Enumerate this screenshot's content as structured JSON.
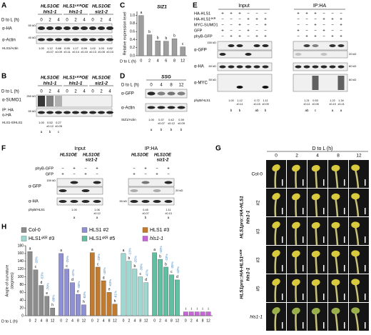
{
  "panels": {
    "A": {
      "label": "A",
      "genotypes": [
        [
          "HLS1OE",
          "hls1-1"
        ],
        [
          "HLS1⁶ᴷᴿOE",
          "hls1-1"
        ],
        [
          "HLS1OE",
          "siz1-2"
        ]
      ],
      "time_label": "D to L (h)",
      "times": [
        "0",
        "2",
        "4",
        "0",
        "2",
        "4",
        "0",
        "2",
        "4"
      ],
      "blots": [
        "α-HA",
        "α-Actin"
      ],
      "mw": [
        "50 kD",
        "40 kD"
      ],
      "quant_label": "HLS1/Actin",
      "quant": [
        [
          "1.00"
        ],
        [
          "1.12",
          "±0.07"
        ],
        [
          "0.88",
          "±0.09"
        ],
        [
          "0.95",
          "±0.11"
        ],
        [
          "1.17",
          "±0.14"
        ],
        [
          "0.99",
          "±0.15"
        ],
        [
          "1.02",
          "±0.13"
        ],
        [
          "1.03",
          "±0.05"
        ],
        [
          "0.82",
          "±0.10"
        ]
      ]
    },
    "B": {
      "label": "B",
      "genotypes": [
        [
          "HLS1OE",
          "hls1-1"
        ],
        [
          "HLS1⁶ᴷᴿOE",
          "hls1-1"
        ],
        [
          "HLS1OE",
          "siz1-2"
        ]
      ],
      "time_label": "D to L (h)",
      "times": [
        "0",
        "2",
        "4",
        "0",
        "2",
        "4",
        "0",
        "2",
        "4"
      ],
      "blots": [
        "α-SUMO1",
        "IP: HA",
        "α-HA"
      ],
      "mw": [
        "250 kD",
        "50 kD"
      ],
      "quant_label": "HLS1-S/HLS1",
      "quant": [
        [
          "1.00"
        ],
        [
          "0.52",
          "±0.12"
        ],
        [
          "0.27",
          "±0.05"
        ]
      ],
      "letters": [
        "a",
        "b",
        "c"
      ]
    },
    "D": {
      "label": "D",
      "title": "SSG",
      "time_label": "D to L (h)",
      "times": [
        "0",
        "4",
        "8",
        "12"
      ],
      "blots": [
        "α-GFP",
        "α-Actin"
      ],
      "quant_label": "SIZ1/Actin",
      "quant": [
        [
          "1.00"
        ],
        [
          "0.37",
          "±0.07"
        ],
        [
          "0.42",
          "±0.12"
        ],
        [
          "0.39",
          "±0.09"
        ]
      ],
      "letters": [
        "a",
        "b",
        "b",
        "b"
      ]
    },
    "E": {
      "label": "E",
      "headers": [
        "Input",
        "IP:HA"
      ],
      "rows": [
        "HA-HLS1",
        "HA-HLS1⁶ᴷᴿ",
        "MYC-SUMO1",
        "GFP",
        "phyB-GFP"
      ],
      "signs": [
        [
          "+",
          "+",
          "+",
          "−",
          "−",
          "−",
          "+",
          "+",
          "+",
          "−",
          "−",
          "−"
        ],
        [
          "−",
          "−",
          "−",
          "+",
          "+",
          "+",
          "−",
          "−",
          "−",
          "+",
          "+",
          "+"
        ],
        [
          "−",
          "−",
          "+",
          "−",
          "−",
          "+",
          "−",
          "−",
          "+",
          "−",
          "−",
          "+"
        ],
        [
          "+",
          "−",
          "−",
          "+",
          "−",
          "−",
          "+",
          "−",
          "−",
          "+",
          "−",
          "−"
        ],
        [
          "−",
          "+",
          "+",
          "−",
          "+",
          "+",
          "−",
          "+",
          "+",
          "−",
          "+",
          "+"
        ]
      ],
      "blots": [
        "α-GFP",
        "α-HA",
        "α-MYC"
      ],
      "mw_input": [
        "150 kD",
        "60 kD",
        "50 kD"
      ],
      "mw_ip": [
        "20 kD",
        "60 kD",
        "60 kD"
      ],
      "quant_label": "phyB/HLS1",
      "quant_input": [
        [
          "1.00"
        ],
        [
          "1.12",
          "±0.11"
        ],
        [
          "0.72",
          "±0.15"
        ],
        [
          "1.11",
          "±0.09"
        ]
      ],
      "letters_input": [
        "b",
        "b",
        "ab",
        "b"
      ],
      "quant_ip": [
        [
          "1.21",
          "±0.11"
        ],
        [
          "0.53",
          "±0.05"
        ],
        [
          "1.22",
          "±0.19"
        ],
        [
          "1.34",
          "±0.21"
        ]
      ],
      "letters_ip": [
        "ab",
        "c",
        "a",
        "a"
      ]
    },
    "F": {
      "label": "F",
      "headers": [
        "Input",
        "IP:HA"
      ],
      "genotypes_input": [
        [
          "HLS1OE"
        ],
        [
          "HLS1OE",
          "siz1-2"
        ]
      ],
      "genotypes_ip": [
        [
          "HLS1OE"
        ],
        [
          "HLS1OE",
          "siz1-2"
        ]
      ],
      "rows": [
        "phyB-GFP",
        "GFP"
      ],
      "signs": [
        [
          "−",
          "+",
          "−",
          "+",
          "−",
          "+",
          "−",
          "+"
        ],
        [
          "+",
          "−",
          "+",
          "−",
          "+",
          "−",
          "+",
          "−"
        ]
      ],
      "blots": [
        "α-GFP",
        "α-HA"
      ],
      "mw": [
        "150 kD",
        "20 kD",
        "50 kD"
      ],
      "quant_label": "phyB/HLS1",
      "quant": [
        [
          "1.00"
        ],
        [
          "1.06",
          "±0.12"
        ],
        [
          "0.45",
          "±0.07"
        ],
        [
          "1.11",
          "±0.13"
        ]
      ],
      "letters": [
        "a",
        "a",
        "b",
        "a"
      ]
    },
    "G": {
      "label": "G",
      "time_label": "D to L (h)",
      "times": [
        "0",
        "2",
        "4",
        "8",
        "12"
      ],
      "rows": [
        "Col-0",
        "#2",
        "#3",
        "#3",
        "#5",
        "hls1-1"
      ],
      "groups": [
        [
          "HLS1pro::HA-HLS1",
          "hls1-1"
        ],
        [
          "HLS1pro::HA-HLS1⁶ᴷᴿ",
          "hls1-1"
        ]
      ]
    }
  },
  "chart_data": [
    {
      "type": "bar",
      "panel": "C",
      "title": "SIZ1",
      "ylabel": "Relative expression level",
      "xlabel": "D to L (h)",
      "categories": [
        "0",
        "2",
        "4",
        "6",
        "8",
        "12"
      ],
      "values": [
        1.0,
        0.52,
        0.37,
        0.36,
        0.42,
        0.22
      ],
      "letters": [
        "a",
        "b",
        "b",
        "b",
        "b",
        "c"
      ],
      "color": "#9e9e9e",
      "ylim": [
        0,
        1.1
      ],
      "yticks": [
        {
          "value": 0,
          "label": "0.0"
        },
        0.2,
        0.4,
        0.6,
        0.8,
        {
          "value": 1,
          "label": "1.0"
        }
      ]
    },
    {
      "type": "bar",
      "panel": "H",
      "ylabel": [
        "Angle of curvature",
        "(degrees)"
      ],
      "xlabel": "D to L (h)",
      "categories": [
        "0",
        "2",
        "4",
        "8",
        "12"
      ],
      "ylim": [
        0,
        180
      ],
      "yticks": [
        0,
        20,
        40,
        60,
        80,
        100,
        120,
        140,
        160,
        180
      ],
      "series": [
        {
          "name": "Col-0",
          "color": "#8c8c8c",
          "values": [
            165,
            118,
            78,
            50,
            20
          ],
          "letters": [
            "a",
            "c",
            "d",
            "e",
            "h"
          ],
          "changes": [
            "-28%",
            "-53%",
            "-70%",
            "-88%"
          ]
        },
        {
          "name": "HLS1 #2",
          "color": "#8f8fd6",
          "values": [
            160,
            120,
            85,
            55,
            28
          ],
          "letters": [
            "a",
            "c",
            "d",
            "e",
            "h"
          ],
          "changes": [
            "-25%",
            "-47%",
            "-66%",
            "-83%"
          ]
        },
        {
          "name": "HLS1 #3",
          "color": "#c27a2c",
          "values": [
            162,
            125,
            90,
            60,
            30
          ],
          "letters": [
            "a",
            "c",
            "d",
            "e",
            "h"
          ],
          "changes": [
            "-23%",
            "-44%",
            "-63%",
            "-81%"
          ]
        },
        {
          "name": "HLS1⁶ᴷᴿ #3",
          "color": "#9fd8d0",
          "values": [
            160,
            140,
            120,
            100,
            85
          ],
          "letters": [
            "a",
            "b",
            "b",
            "c",
            "d"
          ],
          "changes": [
            "-13%",
            "-25%",
            "-38%",
            "-47%"
          ]
        },
        {
          "name": "HLS1⁶ᴷᴿ #5",
          "color": "#5fbfa0",
          "values": [
            162,
            145,
            125,
            105,
            92
          ],
          "letters": [
            "a",
            "b",
            "b",
            "c",
            "d"
          ],
          "changes": [
            "-10%",
            "-23%",
            "-35%",
            "-43%"
          ]
        },
        {
          "name": "hls1-1",
          "color": "#c766d6",
          "values": [
            10,
            10,
            10,
            10,
            10
          ],
          "letters": [
            "i",
            "i",
            "i",
            "i",
            "i"
          ]
        }
      ]
    }
  ]
}
